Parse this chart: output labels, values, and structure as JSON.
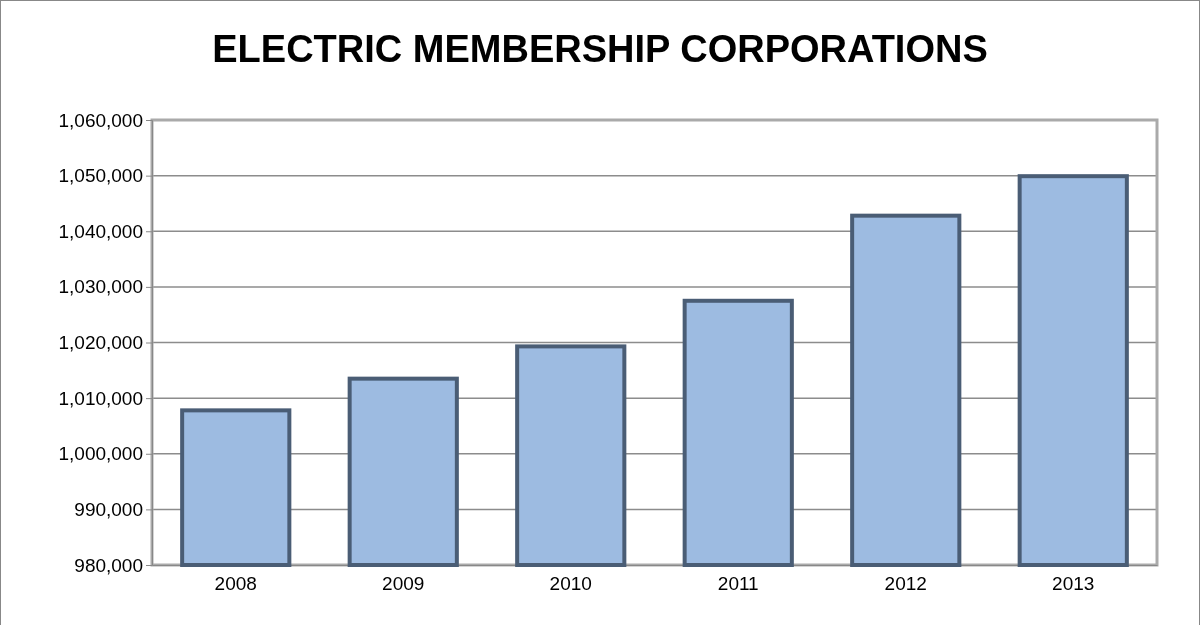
{
  "chart_data": {
    "type": "bar",
    "title": "ELECTRIC MEMBERSHIP CORPORATIONS",
    "categories": [
      "2008",
      "2009",
      "2010",
      "2011",
      "2012",
      "2013"
    ],
    "values": [
      1007800,
      1013500,
      1019300,
      1027500,
      1042800,
      1049900
    ],
    "color": "#9dbbe1",
    "ylim": [
      980000,
      1060000
    ],
    "yticks": [
      {
        "value": 980000,
        "label": "980,000"
      },
      {
        "value": 990000,
        "label": "990,000"
      },
      {
        "value": 1000000,
        "label": "1,000,000"
      },
      {
        "value": 1010000,
        "label": "1,010,000"
      },
      {
        "value": 1020000,
        "label": "1,020,000"
      },
      {
        "value": 1030000,
        "label": "1,030,000"
      },
      {
        "value": 1040000,
        "label": "1,040,000"
      },
      {
        "value": 1050000,
        "label": "1,050,000"
      },
      {
        "value": 1060000,
        "label": "1,060,000"
      }
    ],
    "grid": "y"
  }
}
